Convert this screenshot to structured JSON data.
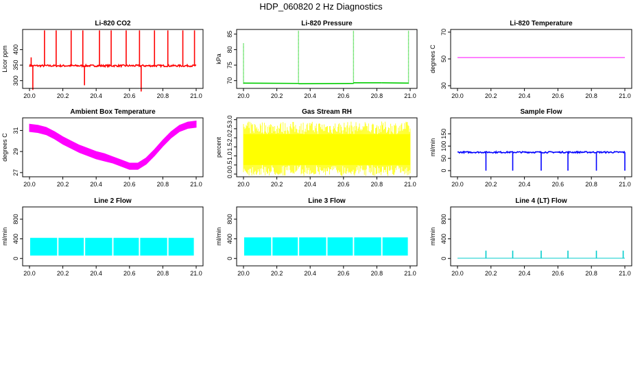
{
  "figure": {
    "title": "HDP_060820  2 Hz Diagnostics"
  },
  "chart_data": [
    {
      "type": "line",
      "title": "Li-820 CO2",
      "ylabel": "Licor ppm",
      "color": "#ff0000",
      "xlim": [
        20.0,
        21.0
      ],
      "ylim": [
        275,
        465
      ],
      "xticks": [
        "20.0",
        "20.2",
        "20.4",
        "20.6",
        "20.8",
        "21.0"
      ],
      "yticks": [
        300,
        350,
        400
      ],
      "baseline": 348,
      "noise": 3,
      "spikes": [
        {
          "x": 20.01,
          "y": 375
        },
        {
          "x": 20.02,
          "y": 270
        },
        {
          "x": 20.09,
          "y": 462
        },
        {
          "x": 20.16,
          "y": 462
        },
        {
          "x": 20.25,
          "y": 462
        },
        {
          "x": 20.32,
          "y": 462
        },
        {
          "x": 20.33,
          "y": 285
        },
        {
          "x": 20.42,
          "y": 462
        },
        {
          "x": 20.49,
          "y": 462
        },
        {
          "x": 20.58,
          "y": 462
        },
        {
          "x": 20.66,
          "y": 462
        },
        {
          "x": 20.67,
          "y": 265
        },
        {
          "x": 20.75,
          "y": 462
        },
        {
          "x": 20.83,
          "y": 462
        },
        {
          "x": 20.92,
          "y": 462
        },
        {
          "x": 20.99,
          "y": 462
        }
      ]
    },
    {
      "type": "line",
      "title": "Li-820 Pressure",
      "ylabel": "kPa",
      "color": "#00cc00",
      "xlim": [
        20.0,
        21.0
      ],
      "ylim": [
        67.5,
        86.5
      ],
      "xticks": [
        "20.0",
        "20.2",
        "20.4",
        "20.6",
        "20.8",
        "21.0"
      ],
      "yticks": [
        70,
        75,
        80,
        85
      ],
      "segments": [
        {
          "x": [
            20.0,
            20.33
          ],
          "y": [
            69.2,
            69.1
          ]
        },
        {
          "x": [
            20.33,
            20.66
          ],
          "y": [
            69.0,
            69.1
          ]
        },
        {
          "x": [
            20.66,
            20.83
          ],
          "y": [
            69.3,
            69.3
          ]
        },
        {
          "x": [
            20.83,
            20.99
          ],
          "y": [
            69.3,
            69.2
          ]
        }
      ],
      "spikes": [
        {
          "x": 20.0,
          "y": 82
        },
        {
          "x": 20.33,
          "y": 86
        },
        {
          "x": 20.66,
          "y": 86
        },
        {
          "x": 20.99,
          "y": 86
        }
      ]
    },
    {
      "type": "line",
      "title": "Li-820 Temperature",
      "ylabel": "degrees C",
      "color": "#ff00ff",
      "xlim": [
        20.0,
        21.0
      ],
      "ylim": [
        28,
        72
      ],
      "xticks": [
        "20.0",
        "20.2",
        "20.4",
        "20.6",
        "20.8",
        "21.0"
      ],
      "yticks": [
        30,
        50,
        70
      ],
      "x": [
        20.0,
        21.0
      ],
      "y": [
        51,
        51
      ]
    },
    {
      "type": "area",
      "title": "Ambient Box Temperature",
      "ylabel": "degrees C",
      "color": "#ff00ff",
      "xlim": [
        20.0,
        21.0
      ],
      "ylim": [
        26.6,
        32.2
      ],
      "xticks": [
        "20.0",
        "20.2",
        "20.4",
        "20.6",
        "20.8",
        "21.0"
      ],
      "yticks": [
        27,
        29,
        31
      ],
      "x": [
        20.0,
        20.05,
        20.1,
        20.15,
        20.2,
        20.25,
        20.3,
        20.35,
        20.4,
        20.45,
        20.5,
        20.55,
        20.6,
        20.65,
        20.7,
        20.75,
        20.8,
        20.85,
        20.9,
        20.95,
        21.0
      ],
      "lower": [
        30.9,
        30.8,
        30.6,
        30.2,
        29.7,
        29.3,
        28.9,
        28.6,
        28.3,
        28.1,
        27.9,
        27.6,
        27.3,
        27.3,
        27.8,
        28.6,
        29.5,
        30.3,
        30.9,
        31.2,
        31.3
      ],
      "upper": [
        31.6,
        31.5,
        31.3,
        30.9,
        30.4,
        30.0,
        29.6,
        29.3,
        29.0,
        28.8,
        28.5,
        28.2,
        27.9,
        27.9,
        28.4,
        29.2,
        30.1,
        30.9,
        31.5,
        31.8,
        31.9
      ]
    },
    {
      "type": "area",
      "title": "Gas Stream RH",
      "ylabel": "percent",
      "color": "#ffff00",
      "xlim": [
        20.0,
        21.0
      ],
      "ylim": [
        -0.15,
        3.1
      ],
      "xticks": [
        "20.0",
        "20.2",
        "20.4",
        "20.6",
        "20.8",
        "21.0"
      ],
      "yticks": [
        "0.0",
        "0.5",
        "1.0",
        "1.5",
        "2.0",
        "2.5",
        "3.0"
      ],
      "x": [
        20.0,
        21.0
      ],
      "lower": [
        0.5,
        0.5
      ],
      "upper": [
        2.2,
        2.2
      ],
      "min": -0.1,
      "max": 2.9
    },
    {
      "type": "line",
      "title": "Sample Flow",
      "ylabel": "ml/min",
      "color": "#0000ff",
      "xlim": [
        20.0,
        21.0
      ],
      "ylim": [
        -25,
        215
      ],
      "xticks": [
        "20.0",
        "20.2",
        "20.4",
        "20.6",
        "20.8",
        "21.0"
      ],
      "yticks": [
        0,
        50,
        100,
        150
      ],
      "baseline": 75,
      "noise": 3,
      "spikes": [
        {
          "x": 20.17,
          "y": 0
        },
        {
          "x": 20.33,
          "y": 0
        },
        {
          "x": 20.5,
          "y": 0
        },
        {
          "x": 20.66,
          "y": 0
        },
        {
          "x": 20.83,
          "y": 0
        },
        {
          "x": 21.0,
          "y": 0
        }
      ]
    },
    {
      "type": "area",
      "title": "Line 2 Flow",
      "ylabel": "ml/min",
      "color": "#00ffff",
      "xlim": [
        20.0,
        21.0
      ],
      "ylim": [
        -150,
        1050
      ],
      "xticks": [
        "20.0",
        "20.2",
        "20.4",
        "20.6",
        "20.8",
        "21.0"
      ],
      "yticks": [
        0,
        400,
        800
      ],
      "lower": 60,
      "upper": 420,
      "gaps": [
        20.0,
        20.17,
        20.33,
        20.5,
        20.66,
        20.83,
        20.99
      ]
    },
    {
      "type": "area",
      "title": "Line 3 Flow",
      "ylabel": "ml/min",
      "color": "#00ffff",
      "xlim": [
        20.0,
        21.0
      ],
      "ylim": [
        -150,
        1050
      ],
      "xticks": [
        "20.0",
        "20.2",
        "20.4",
        "20.6",
        "20.8",
        "21.0"
      ],
      "yticks": [
        0,
        400,
        800
      ],
      "lower": 60,
      "upper": 430,
      "gaps": [
        20.0,
        20.17,
        20.33,
        20.5,
        20.66,
        20.83,
        20.99
      ]
    },
    {
      "type": "line",
      "title": "Line 4 (LT) Flow",
      "ylabel": "ml/min",
      "color": "#00cccc",
      "xlim": [
        20.0,
        21.0
      ],
      "ylim": [
        -150,
        1050
      ],
      "xticks": [
        "20.0",
        "20.2",
        "20.4",
        "20.6",
        "20.8",
        "21.0"
      ],
      "yticks": [
        0,
        400,
        800
      ],
      "baseline": 5,
      "noise": 0,
      "spikes": [
        {
          "x": 20.17,
          "y": 160
        },
        {
          "x": 20.33,
          "y": 160
        },
        {
          "x": 20.5,
          "y": 160
        },
        {
          "x": 20.66,
          "y": 160
        },
        {
          "x": 20.83,
          "y": 160
        },
        {
          "x": 20.99,
          "y": 160
        }
      ]
    }
  ]
}
